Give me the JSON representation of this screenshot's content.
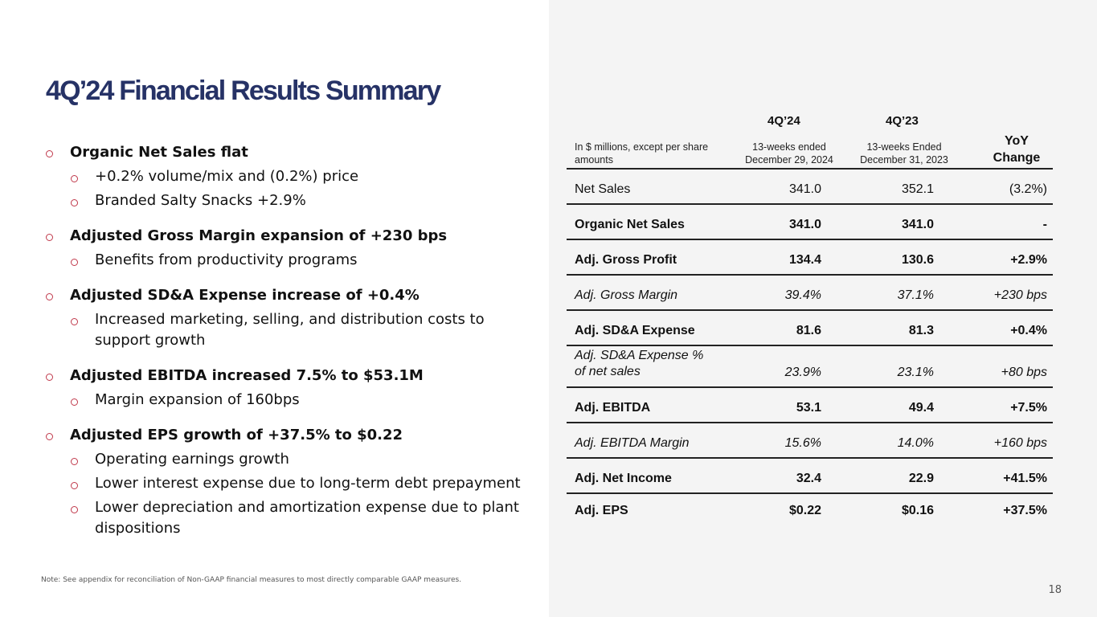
{
  "title": "4Q’24 Financial Results Summary",
  "bullets": [
    {
      "text": "Organic Net Sales flat",
      "sub": [
        "+0.2% volume/mix and (0.2%) price",
        "Branded Salty Snacks +2.9%"
      ]
    },
    {
      "text": "Adjusted Gross Margin expansion of +230 bps",
      "sub": [
        "Benefits from productivity programs"
      ]
    },
    {
      "text": "Adjusted SD&A Expense increase of +0.4%",
      "sub": [
        "Increased marketing, selling, and distribution costs to support growth"
      ]
    },
    {
      "text": "Adjusted EBITDA increased 7.5% to $53.1M",
      "sub": [
        "Margin expansion of 160bps"
      ]
    },
    {
      "text": "Adjusted EPS growth of +37.5% to $0.22",
      "sub": [
        "Operating earnings growth",
        "Lower interest expense due to long-term debt prepayment",
        "Lower depreciation and amortization expense due to plant dispositions"
      ]
    }
  ],
  "note": "Note: See appendix for reconciliation of Non-GAAP financial measures to most directly comparable GAAP measures.",
  "page_number": "18",
  "table": {
    "header": {
      "label": "In $ millions, except per share amounts",
      "col1_period": "4Q’24",
      "col1_sub": "13-weeks ended December 29, 2024",
      "col2_period": "4Q’23",
      "col2_sub": "13-weeks Ended December 31, 2023",
      "col3": "YoY Change"
    },
    "rows": [
      {
        "label": "Net Sales",
        "v1": "341.0",
        "v2": "352.1",
        "v3": "(3.2%)",
        "style": "regular"
      },
      {
        "label": "Organic Net Sales",
        "v1": "341.0",
        "v2": "341.0",
        "v3": "-",
        "style": "bold"
      },
      {
        "label": "Adj. Gross Profit",
        "v1": "134.4",
        "v2": "130.6",
        "v3": "+2.9%",
        "style": "bold"
      },
      {
        "label": "Adj. Gross Margin",
        "v1": "39.4%",
        "v2": "37.1%",
        "v3": "+230 bps",
        "style": "italic"
      },
      {
        "label": "Adj. SD&A Expense",
        "v1": "81.6",
        "v2": "81.3",
        "v3": "+0.4%",
        "style": "bold"
      },
      {
        "label": "Adj. SD&A Expense % of net sales",
        "v1": "23.9%",
        "v2": "23.1%",
        "v3": "+80 bps",
        "style": "italic"
      },
      {
        "label": "Adj. EBITDA",
        "v1": "53.1",
        "v2": "49.4",
        "v3": "+7.5%",
        "style": "bold"
      },
      {
        "label": "Adj. EBITDA Margin",
        "v1": "15.6%",
        "v2": "14.0%",
        "v3": "+160 bps",
        "style": "italic"
      },
      {
        "label": "Adj. Net Income",
        "v1": "32.4",
        "v2": "22.9",
        "v3": "+41.5%",
        "style": "bold"
      },
      {
        "label": "Adj. EPS",
        "v1": "$0.22",
        "v2": "$0.16",
        "v3": "+37.5%",
        "style": "bold"
      }
    ]
  },
  "colors": {
    "title": "#263266",
    "bullet": "#c0394b",
    "panel": "#f4f4f4"
  }
}
